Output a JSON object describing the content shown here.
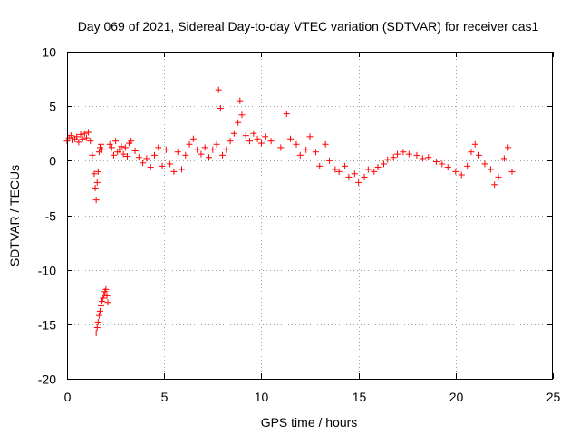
{
  "chart_data": {
    "type": "scatter",
    "title": "Day 069 of 2021, Sidereal Day-to-day VTEC variation (SDTVAR) for receiver cas1",
    "xlabel": "GPS time / hours",
    "ylabel": "SDTVAR / TECUs",
    "xlim": [
      0,
      25
    ],
    "ylim": [
      -20,
      10
    ],
    "x_ticks": [
      0,
      5,
      10,
      15,
      20,
      25
    ],
    "x_tick_labels": [
      "0",
      "5",
      "10",
      "15",
      "20",
      "25"
    ],
    "y_ticks": [
      -20,
      -15,
      -10,
      -5,
      0,
      5,
      10
    ],
    "y_tick_labels": [
      "-20",
      "-15",
      "-10",
      "-5",
      "0",
      "5",
      "10"
    ],
    "grid": true,
    "marker": "+",
    "series_color": "#ff0000",
    "series": [
      {
        "name": "cas1",
        "x": [
          0.0,
          0.1,
          0.2,
          0.3,
          0.4,
          0.5,
          0.6,
          0.7,
          0.8,
          0.9,
          1.0,
          1.1,
          1.2,
          1.3,
          1.4,
          1.45,
          1.5,
          1.55,
          1.6,
          1.65,
          1.7,
          1.75,
          1.8,
          1.5,
          1.55,
          1.6,
          1.65,
          1.7,
          1.75,
          1.8,
          1.85,
          1.9,
          1.95,
          2.0,
          2.05,
          2.1,
          2.2,
          2.3,
          2.4,
          2.5,
          2.6,
          2.7,
          2.8,
          2.9,
          3.0,
          3.1,
          3.2,
          3.3,
          3.5,
          3.7,
          3.9,
          4.1,
          4.3,
          4.5,
          4.7,
          4.9,
          5.1,
          5.3,
          5.5,
          5.7,
          5.9,
          6.1,
          6.3,
          6.5,
          6.7,
          6.9,
          7.1,
          7.3,
          7.5,
          7.7,
          7.8,
          7.9,
          8.0,
          8.2,
          8.4,
          8.6,
          8.8,
          8.9,
          9.0,
          9.2,
          9.4,
          9.6,
          9.8,
          10.0,
          10.2,
          10.5,
          11.0,
          11.3,
          11.5,
          11.8,
          12.0,
          12.3,
          12.5,
          12.8,
          13.0,
          13.3,
          13.5,
          13.8,
          14.0,
          14.3,
          14.5,
          14.8,
          15.0,
          15.3,
          15.5,
          15.8,
          16.0,
          16.3,
          16.5,
          16.8,
          17.0,
          17.3,
          17.6,
          18.0,
          18.3,
          18.6,
          19.0,
          19.3,
          19.6,
          20.0,
          20.3,
          20.6,
          20.8,
          21.0,
          21.2,
          21.5,
          21.8,
          22.0,
          22.2,
          22.5,
          22.7,
          22.9
        ],
        "y": [
          1.8,
          2.1,
          2.3,
          1.9,
          2.0,
          2.2,
          1.7,
          2.4,
          2.0,
          2.5,
          2.1,
          2.6,
          1.8,
          0.5,
          -1.2,
          -2.5,
          -3.6,
          -2.0,
          -1.0,
          0.8,
          1.2,
          1.5,
          1.0,
          -15.8,
          -15.3,
          -14.8,
          -14.2,
          -13.8,
          -13.3,
          -12.9,
          -12.6,
          -12.3,
          -12.0,
          -11.8,
          -12.4,
          -13.0,
          1.5,
          1.2,
          0.5,
          1.8,
          0.8,
          1.0,
          1.3,
          0.6,
          1.2,
          0.4,
          1.6,
          1.8,
          0.9,
          0.3,
          -0.2,
          0.2,
          -0.6,
          0.5,
          1.2,
          -0.5,
          1.0,
          -0.3,
          -1.0,
          0.8,
          -0.8,
          0.5,
          1.5,
          2.0,
          1.0,
          0.6,
          1.2,
          0.3,
          1.0,
          1.5,
          6.5,
          4.8,
          0.5,
          1.0,
          1.8,
          2.5,
          3.5,
          5.5,
          4.2,
          2.3,
          1.8,
          2.5,
          2.0,
          1.6,
          2.2,
          1.8,
          1.2,
          4.3,
          2.0,
          1.5,
          0.5,
          1.0,
          2.2,
          0.8,
          -0.5,
          1.5,
          0.0,
          -0.8,
          -1.0,
          -0.5,
          -1.5,
          -1.2,
          -2.0,
          -1.5,
          -0.8,
          -1.0,
          -0.6,
          -0.3,
          0.1,
          0.3,
          0.6,
          0.8,
          0.6,
          0.5,
          0.2,
          0.3,
          -0.1,
          -0.3,
          -0.6,
          -1.0,
          -1.3,
          -0.5,
          0.8,
          1.5,
          0.5,
          -0.3,
          -0.8,
          -2.2,
          -1.5,
          0.2,
          1.2,
          -1.0
        ]
      }
    ]
  }
}
